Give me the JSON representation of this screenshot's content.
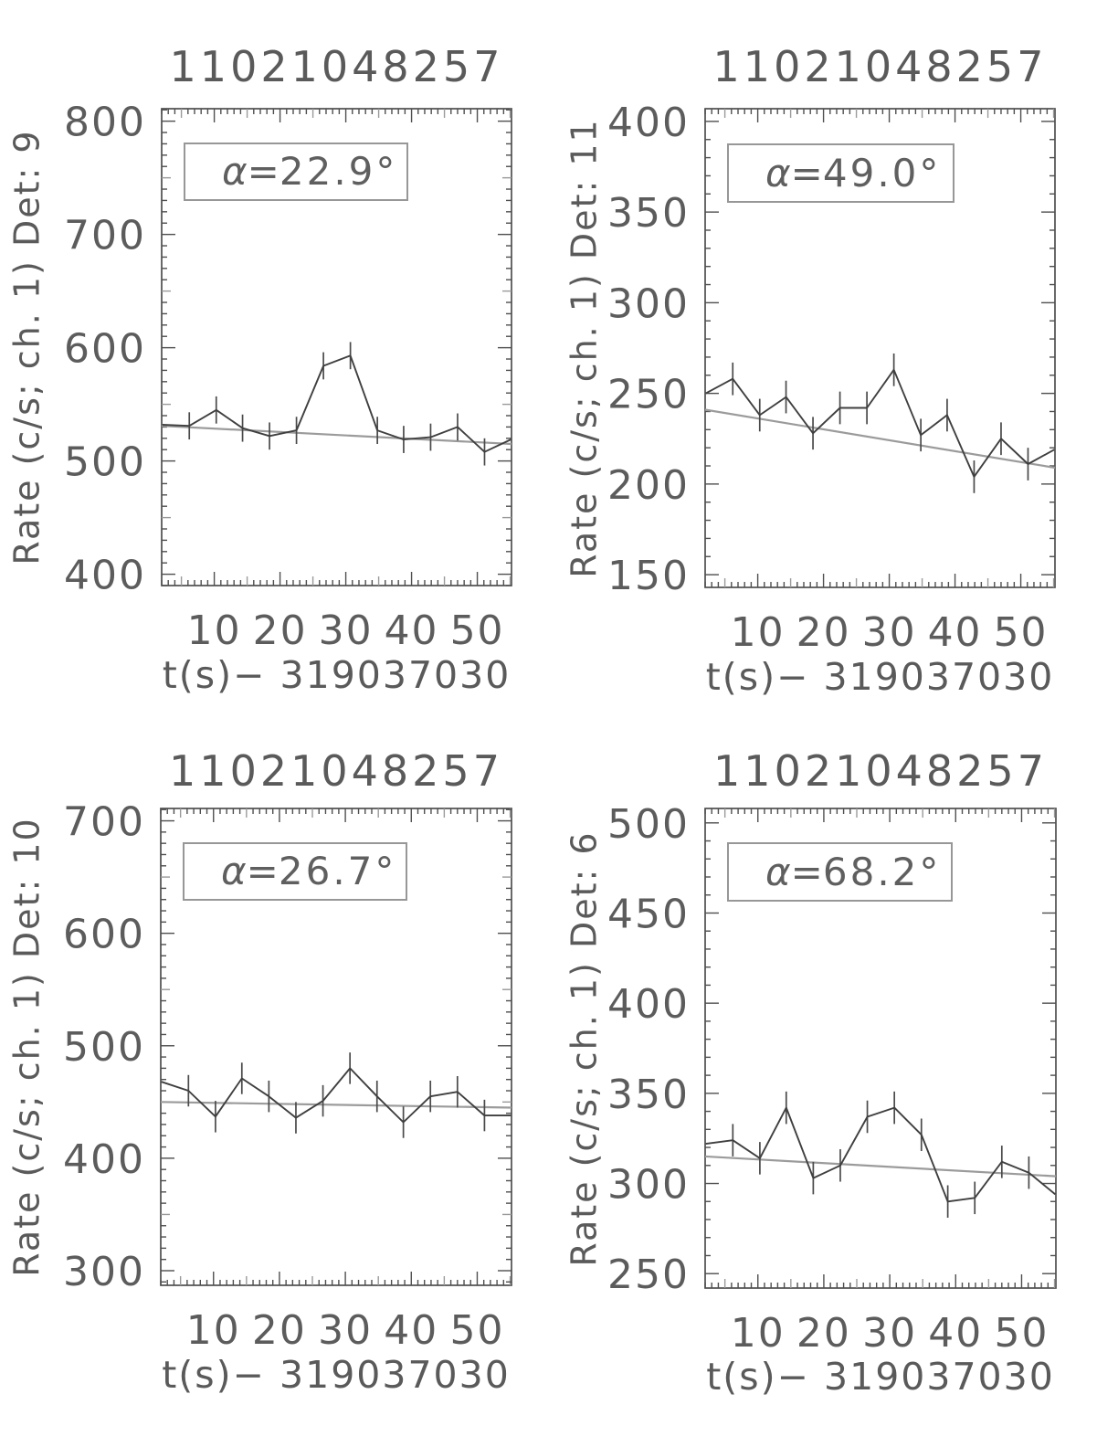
{
  "colors": {
    "background": "#ffffff",
    "axis": "#4f4f4f",
    "data_line": "#3f3f3f",
    "error_bar": "#4a4a4a",
    "trend_line": "#9b9b9b",
    "text": "#5c5c5c",
    "annotation_border": "#979797"
  },
  "chart_data": [
    {
      "type": "line",
      "title": "11021048257",
      "ylabel": "Rate (c/s; ch. 1) Det: 9",
      "xlabel": "t(s)− 319037030",
      "alpha_eq": "α=",
      "alpha_value": "22.9°",
      "grid": false,
      "legend_position": "none",
      "x_ticks": [
        10,
        20,
        30,
        40,
        50
      ],
      "y_ticks": [
        400,
        500,
        600,
        700,
        800
      ],
      "x_range": [
        2.0,
        55.2
      ],
      "y_range": [
        390,
        811
      ],
      "x_major_step": 10,
      "x_mid_step": 5,
      "x_minor_step": 1,
      "y_major_step": 100,
      "y_mid_step": 50,
      "y_minor_step": 10,
      "x": [
        2.1,
        6.2,
        10.3,
        14.3,
        18.4,
        22.5,
        26.6,
        30.7,
        34.8,
        38.8,
        42.9,
        47.0,
        51.1,
        55.1
      ],
      "values": [
        532,
        531,
        545,
        529,
        522,
        527,
        584,
        593,
        527,
        519,
        521,
        530,
        508,
        519
      ],
      "errors": [
        0,
        12,
        12,
        12,
        12,
        12,
        12,
        12,
        12,
        12,
        12,
        12,
        12,
        0
      ],
      "trend": {
        "start": 531,
        "end": 515
      }
    },
    {
      "type": "line",
      "title": "11021048257",
      "ylabel": "Rate (c/s; ch. 1) Det: 11",
      "xlabel": "t(s)− 319037030",
      "alpha_eq": "α=",
      "alpha_value": "49.0°",
      "grid": false,
      "legend_position": "none",
      "x_ticks": [
        10,
        20,
        30,
        40,
        50
      ],
      "y_ticks": [
        150,
        200,
        250,
        300,
        350,
        400
      ],
      "x_range": [
        2.0,
        55.2
      ],
      "y_range": [
        143,
        407
      ],
      "x_major_step": 10,
      "x_mid_step": 5,
      "x_minor_step": 1,
      "y_major_step": 50,
      "y_mid_step": null,
      "y_minor_step": 10,
      "x": [
        2.1,
        6.2,
        10.3,
        14.3,
        18.4,
        22.5,
        26.6,
        30.7,
        34.8,
        38.8,
        42.9,
        47.0,
        51.1,
        55.1
      ],
      "values": [
        250,
        258,
        238,
        248,
        228,
        242,
        242,
        263,
        227,
        238,
        204,
        225,
        211,
        219
      ],
      "errors": [
        0,
        9,
        9,
        9,
        9,
        9,
        9,
        9,
        9,
        9,
        9,
        9,
        9,
        0
      ],
      "trend": {
        "start": 241,
        "end": 209
      }
    },
    {
      "type": "line",
      "title": "11021048257",
      "ylabel": "Rate (c/s; ch. 1) Det: 10",
      "xlabel": "t(s)− 319037030",
      "alpha_eq": "α=",
      "alpha_value": "26.7°",
      "grid": false,
      "legend_position": "none",
      "x_ticks": [
        10,
        20,
        30,
        40,
        50
      ],
      "y_ticks": [
        300,
        400,
        500,
        600,
        700
      ],
      "x_range": [
        2.0,
        55.2
      ],
      "y_range": [
        287,
        711
      ],
      "x_major_step": 10,
      "x_mid_step": 5,
      "x_minor_step": 1,
      "y_major_step": 100,
      "y_mid_step": 50,
      "y_minor_step": 10,
      "x": [
        2.1,
        6.2,
        10.3,
        14.3,
        18.4,
        22.5,
        26.6,
        30.7,
        34.8,
        38.8,
        42.9,
        47.0,
        51.1,
        55.1
      ],
      "values": [
        468,
        460,
        437,
        471,
        455,
        436,
        451,
        480,
        455,
        432,
        455,
        459,
        438,
        438
      ],
      "errors": [
        0,
        14,
        14,
        14,
        14,
        14,
        14,
        14,
        14,
        14,
        14,
        14,
        14,
        0
      ],
      "trend": {
        "start": 450,
        "end": 445
      }
    },
    {
      "type": "line",
      "title": "11021048257",
      "ylabel": "Rate (c/s; ch. 1) Det: 6",
      "xlabel": "t(s)− 319037030",
      "alpha_eq": "α=",
      "alpha_value": "68.2°",
      "grid": false,
      "legend_position": "none",
      "x_ticks": [
        10,
        20,
        30,
        40,
        50
      ],
      "y_ticks": [
        250,
        300,
        350,
        400,
        450,
        500
      ],
      "x_range": [
        2.0,
        55.2
      ],
      "y_range": [
        242,
        508
      ],
      "x_major_step": 10,
      "x_mid_step": 5,
      "x_minor_step": 1,
      "y_major_step": 50,
      "y_mid_step": null,
      "y_minor_step": 10,
      "x": [
        2.1,
        6.2,
        10.3,
        14.3,
        18.4,
        22.5,
        26.6,
        30.7,
        34.8,
        38.8,
        42.9,
        47.0,
        51.1,
        55.1
      ],
      "values": [
        322,
        324,
        314,
        342,
        303,
        310,
        337,
        342,
        327,
        290,
        292,
        312,
        306,
        294
      ],
      "errors": [
        0,
        9,
        9,
        9,
        9,
        9,
        9,
        9,
        9,
        9,
        9,
        9,
        9,
        0
      ],
      "trend": {
        "start": 315,
        "end": 304
      }
    }
  ]
}
